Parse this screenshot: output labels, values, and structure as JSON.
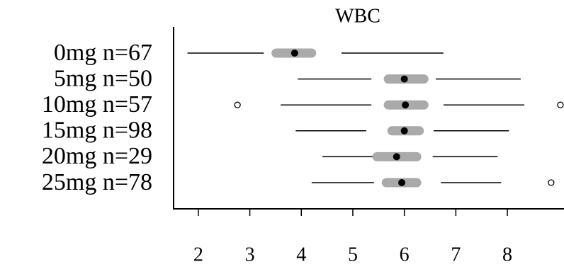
{
  "chart_data": {
    "type": "boxplot",
    "title": "WBC",
    "categories": [
      "0mg n=67",
      "5mg n=50",
      "10mg n=57",
      "15mg n=98",
      "20mg n=29",
      "25mg n=78"
    ],
    "boxes": [
      {
        "min": 1.79,
        "q1": 3.27,
        "ci_low": 3.51,
        "median": 3.87,
        "ci_high": 4.2,
        "q3": 4.78,
        "max": 6.76,
        "outliers": []
      },
      {
        "min": 3.93,
        "q1": 5.36,
        "ci_low": 5.69,
        "median": 6.0,
        "ci_high": 6.38,
        "q3": 6.61,
        "max": 8.26,
        "outliers": []
      },
      {
        "min": 3.6,
        "q1": 5.36,
        "ci_low": 5.69,
        "median": 6.02,
        "ci_high": 6.38,
        "q3": 6.76,
        "max": 8.33,
        "outliers": [
          2.76,
          9.03
        ]
      },
      {
        "min": 3.89,
        "q1": 5.26,
        "ci_low": 5.76,
        "median": 6.0,
        "ci_high": 6.29,
        "q3": 6.57,
        "max": 8.03,
        "outliers": []
      },
      {
        "min": 4.41,
        "q1": 5.58,
        "ci_low": 5.47,
        "median": 5.85,
        "ci_high": 6.24,
        "q3": 6.55,
        "max": 7.81,
        "outliers": []
      },
      {
        "min": 4.2,
        "q1": 5.41,
        "ci_low": 5.65,
        "median": 5.95,
        "ci_high": 6.24,
        "q3": 6.71,
        "max": 7.88,
        "outliers": [
          8.85
        ]
      }
    ],
    "box_color": "#aaaaaa",
    "xlim": [
      1.52,
      9.1
    ],
    "xticks": [
      2,
      3,
      4,
      5,
      6,
      7,
      8
    ]
  }
}
